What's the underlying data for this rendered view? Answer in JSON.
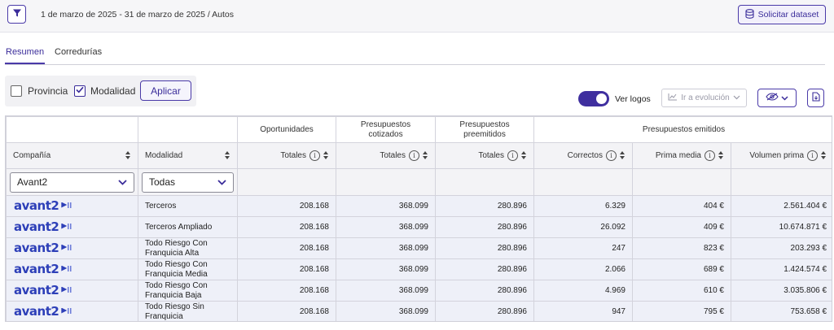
{
  "header": {
    "date_range": "1 de marzo de 2025 - 31 de marzo de 2025 / Autos",
    "dataset_button": "Solicitar dataset",
    "filter_icon": "filter-icon",
    "database_icon": "database-icon"
  },
  "tabs": [
    {
      "label": "Resumen",
      "active": true
    },
    {
      "label": "Corredurías",
      "active": false
    }
  ],
  "filters": {
    "provincia_label": "Provincia",
    "provincia_checked": false,
    "modalidad_label": "Modalidad",
    "modalidad_checked": true,
    "apply_label": "Aplicar"
  },
  "toolbar": {
    "logos_label": "Ver logos",
    "logos_on": true,
    "evolution_label": "Ir a evolución"
  },
  "table": {
    "groups": {
      "oportunidades": "Oportunidades",
      "cotizados": "Presupuestos cotizados",
      "preemitidos": "Presupuestos preemitidos",
      "emitidos": "Presupuestos emitidos"
    },
    "columns": {
      "compania": "Compañía",
      "modalidad": "Modalidad",
      "totales": "Totales",
      "correctos": "Correctos",
      "prima_media": "Prima media",
      "volumen_prima": "Volumen prima"
    },
    "column_filters": {
      "compania": "Avant2",
      "modalidad": "Todas"
    },
    "rows": [
      {
        "company_logo": "avant2",
        "modalidad": "Terceros",
        "oportunidades": "208.168",
        "cotizados": "368.099",
        "preemitidos": "280.896",
        "correctos": "6.329",
        "prima_media": "404 €",
        "volumen_prima": "2.561.404 €"
      },
      {
        "company_logo": "avant2",
        "modalidad": "Terceros Ampliado",
        "oportunidades": "208.168",
        "cotizados": "368.099",
        "preemitidos": "280.896",
        "correctos": "26.092",
        "prima_media": "409 €",
        "volumen_prima": "10.674.871 €"
      },
      {
        "company_logo": "avant2",
        "modalidad": "Todo Riesgo Con Franquicia Alta",
        "oportunidades": "208.168",
        "cotizados": "368.099",
        "preemitidos": "280.896",
        "correctos": "247",
        "prima_media": "823 €",
        "volumen_prima": "203.293 €"
      },
      {
        "company_logo": "avant2",
        "modalidad": "Todo Riesgo Con Franquicia Media",
        "oportunidades": "208.168",
        "cotizados": "368.099",
        "preemitidos": "280.896",
        "correctos": "2.066",
        "prima_media": "689 €",
        "volumen_prima": "1.424.574 €"
      },
      {
        "company_logo": "avant2",
        "modalidad": "Todo Riesgo Con Franquicia Baja",
        "oportunidades": "208.168",
        "cotizados": "368.099",
        "preemitidos": "280.896",
        "correctos": "4.969",
        "prima_media": "610 €",
        "volumen_prima": "3.035.806 €"
      },
      {
        "company_logo": "avant2",
        "modalidad": "Todo Riesgo Sin Franquicia",
        "oportunidades": "208.168",
        "cotizados": "368.099",
        "preemitidos": "280.896",
        "correctos": "947",
        "prima_media": "795 €",
        "volumen_prima": "753.658 €"
      }
    ]
  },
  "colors": {
    "accent": "#4a3aa8",
    "logo": "#2d3fb8",
    "row_bg": "#eef0f8"
  }
}
